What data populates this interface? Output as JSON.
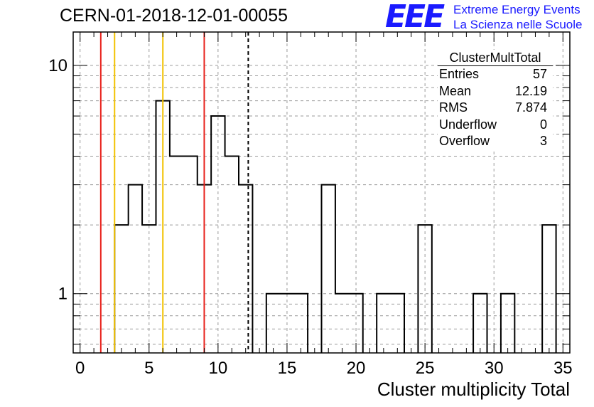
{
  "run_title": "CERN-01-2018-12-01-00055",
  "logo": {
    "mark": "EEE",
    "line1": "Extreme Energy Events",
    "line2": "La Scienza nelle Scuole"
  },
  "stats_box": {
    "title": "ClusterMultTotal",
    "rows": [
      {
        "label": "Entries",
        "value": "57"
      },
      {
        "label": "Mean",
        "value": "12.19"
      },
      {
        "label": "RMS",
        "value": "7.874"
      },
      {
        "label": "Underflow",
        "value": "0"
      },
      {
        "label": "Overflow",
        "value": "3"
      }
    ]
  },
  "chart_data": {
    "type": "bar",
    "histogram": true,
    "title": "CERN-01-2018-12-01-00055",
    "xlabel": "Cluster multiplicity Total",
    "ylabel": "",
    "xlim": [
      -0.5,
      35.5
    ],
    "ylim": [
      0.55,
      14
    ],
    "ylog": true,
    "grid": true,
    "xticks": [
      0,
      5,
      10,
      15,
      20,
      25,
      30,
      35
    ],
    "ytick_labels": [
      {
        "value": 1,
        "label": "1"
      },
      {
        "value": 10,
        "label": "10"
      }
    ],
    "bins": [
      {
        "x": 3,
        "count": 2
      },
      {
        "x": 4,
        "count": 3
      },
      {
        "x": 5,
        "count": 2
      },
      {
        "x": 6,
        "count": 7
      },
      {
        "x": 7,
        "count": 4
      },
      {
        "x": 8,
        "count": 4
      },
      {
        "x": 9,
        "count": 3
      },
      {
        "x": 10,
        "count": 6
      },
      {
        "x": 11,
        "count": 4
      },
      {
        "x": 12,
        "count": 3
      },
      {
        "x": 14,
        "count": 1
      },
      {
        "x": 15,
        "count": 1
      },
      {
        "x": 16,
        "count": 1
      },
      {
        "x": 18,
        "count": 3
      },
      {
        "x": 19,
        "count": 1
      },
      {
        "x": 20,
        "count": 1
      },
      {
        "x": 22,
        "count": 1
      },
      {
        "x": 23,
        "count": 1
      },
      {
        "x": 25,
        "count": 2
      },
      {
        "x": 29,
        "count": 1
      },
      {
        "x": 31,
        "count": 1
      },
      {
        "x": 34,
        "count": 2
      }
    ],
    "vertical_lines": [
      {
        "x": 1.5,
        "color": "#e8211b",
        "style": "solid"
      },
      {
        "x": 2.5,
        "color": "#f2c200",
        "style": "solid"
      },
      {
        "x": 6.0,
        "color": "#f2c200",
        "style": "solid"
      },
      {
        "x": 9.0,
        "color": "#e8211b",
        "style": "solid"
      },
      {
        "x": 12.19,
        "color": "#000000",
        "style": "dashed"
      }
    ]
  }
}
